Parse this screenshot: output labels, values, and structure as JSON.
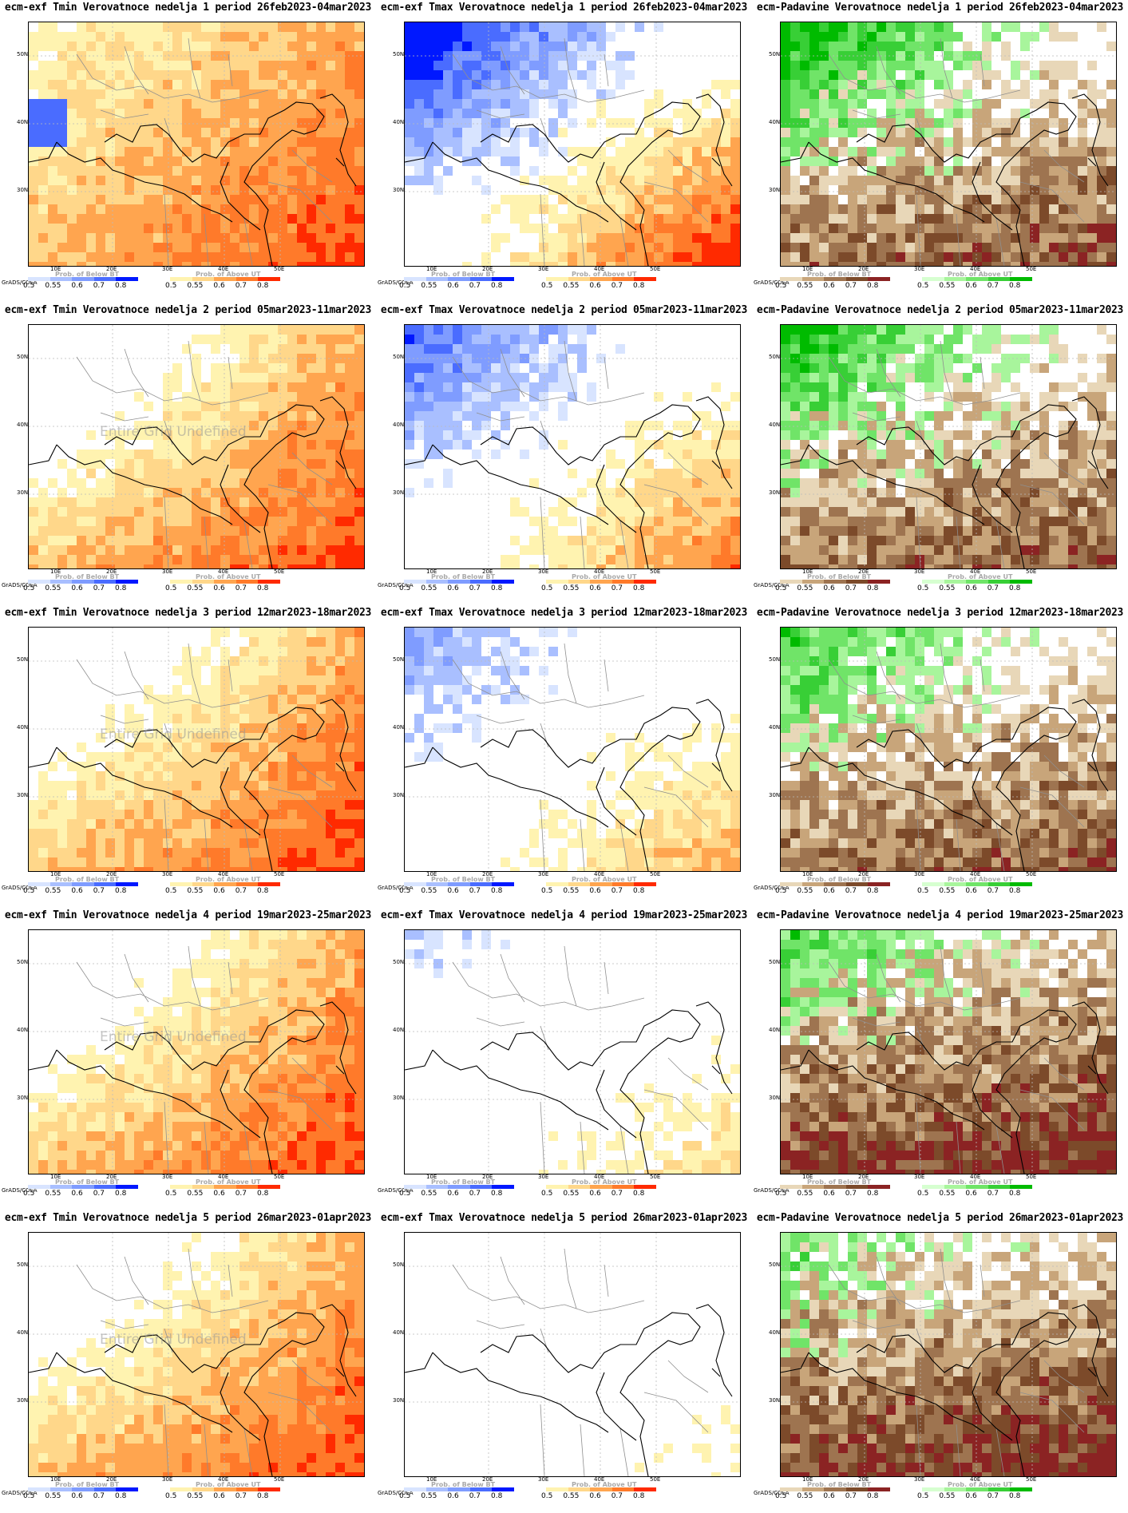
{
  "lat_labels": [
    "50N",
    "40N",
    "30N"
  ],
  "lon_labels": [
    "10E",
    "20E",
    "30E",
    "40E",
    "50E"
  ],
  "legend": {
    "grads_label": "GrADS/COLA",
    "below_title": "Prob. of Below BT",
    "above_title": "Prob. of Above UT",
    "ticks": [
      "0.5",
      "0.55",
      "0.6",
      "0.7",
      "0.8"
    ]
  },
  "colors": {
    "tmin_above": [
      "#fff3b0",
      "#ffd78a",
      "#ffa54f",
      "#ff7a2a",
      "#ff2a00"
    ],
    "tmin_below": [
      "#d8e4ff",
      "#a9bfff",
      "#7f9cff",
      "#4a6cff",
      "#0018ff"
    ],
    "tmax_above": [
      "#fff3b0",
      "#ffd78a",
      "#ffa54f",
      "#ff7a2a",
      "#ff2a00"
    ],
    "tmax_below": [
      "#d8e4ff",
      "#a9bfff",
      "#7f9cff",
      "#4a6cff",
      "#0018ff"
    ],
    "pad_below": [
      "#e8d7b8",
      "#c8a57a",
      "#9e7450",
      "#7c4a2a",
      "#8b2323"
    ],
    "pad_above": [
      "#d6ffd0",
      "#a8f59c",
      "#70e468",
      "#38cf36",
      "#00bb00"
    ]
  },
  "watermark": "Entire Grid Undefined",
  "panels": [
    {
      "title": "ecm-exf Tmin Verovatnoce nedelja 1 period 26feb2023-04mar2023",
      "variable": "tmin",
      "week": 1,
      "watermark": false
    },
    {
      "title": "ecm-exf Tmax Verovatnoce nedelja 1 period 26feb2023-04mar2023",
      "variable": "tmax",
      "week": 1,
      "watermark": false
    },
    {
      "title": "ecm-Padavine Verovatnoce nedelja 1 period 26feb2023-04mar2023",
      "variable": "pad",
      "week": 1,
      "watermark": false
    },
    {
      "title": "ecm-exf Tmin Verovatnoce nedelja 2 period 05mar2023-11mar2023",
      "variable": "tmin",
      "week": 2,
      "watermark": true
    },
    {
      "title": "ecm-exf Tmax Verovatnoce nedelja 2 period 05mar2023-11mar2023",
      "variable": "tmax",
      "week": 2,
      "watermark": false
    },
    {
      "title": "ecm-Padavine Verovatnoce nedelja 2 period 05mar2023-11mar2023",
      "variable": "pad",
      "week": 2,
      "watermark": false
    },
    {
      "title": "ecm-exf Tmin Verovatnoce nedelja 3 period 12mar2023-18mar2023",
      "variable": "tmin",
      "week": 3,
      "watermark": true
    },
    {
      "title": "ecm-exf Tmax Verovatnoce nedelja 3 period 12mar2023-18mar2023",
      "variable": "tmax",
      "week": 3,
      "watermark": false
    },
    {
      "title": "ecm-Padavine Verovatnoce nedelja 3 period 12mar2023-18mar2023",
      "variable": "pad",
      "week": 3,
      "watermark": false
    },
    {
      "title": "ecm-exf Tmin Verovatnoce nedelja 4 period 19mar2023-25mar2023",
      "variable": "tmin",
      "week": 4,
      "watermark": true
    },
    {
      "title": "ecm-exf Tmax Verovatnoce nedelja 4 period 19mar2023-25mar2023",
      "variable": "tmax",
      "week": 4,
      "watermark": false
    },
    {
      "title": "ecm-Padavine Verovatnoce nedelja 4 period 19mar2023-25mar2023",
      "variable": "pad",
      "week": 4,
      "watermark": false
    },
    {
      "title": "ecm-exf Tmin Verovatnoce nedelja 5 period 26mar2023-01apr2023",
      "variable": "tmin",
      "week": 5,
      "watermark": true
    },
    {
      "title": "ecm-exf Tmax Verovatnoce nedelja 5 period 26mar2023-01apr2023",
      "variable": "tmax",
      "week": 5,
      "watermark": false
    },
    {
      "title": "ecm-Padavine Verovatnoce nedelja 5 period 26mar2023-01apr2023",
      "variable": "pad",
      "week": 5,
      "watermark": false
    }
  ]
}
